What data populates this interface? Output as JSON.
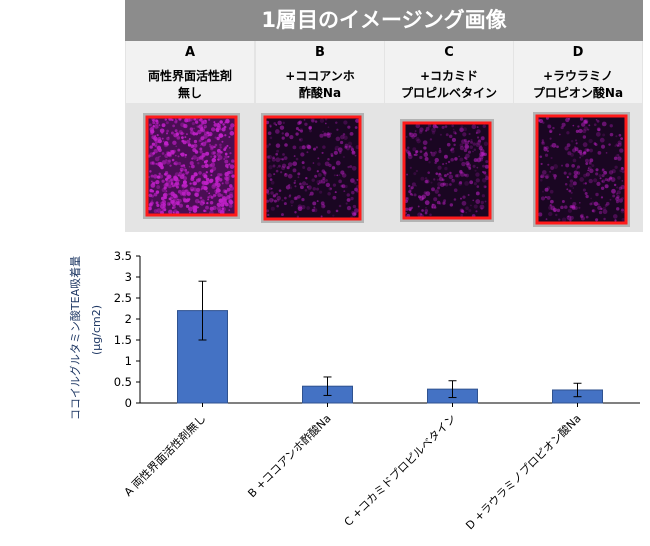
{
  "banner": {
    "title": "1層目のイメージング画像"
  },
  "columns": [
    {
      "letter": "A",
      "line1": "両性界面活性剤",
      "line2": "無し",
      "intensity": "high"
    },
    {
      "letter": "B",
      "line1": "+ココアンホ",
      "line2": "酢酸Na",
      "intensity": "low"
    },
    {
      "letter": "C",
      "line1": "+コカミド",
      "line2": "プロピルベタイン",
      "intensity": "low"
    },
    {
      "letter": "D",
      "line1": "+ラウラミノ",
      "line2": "プロピオン酸Na",
      "intensity": "low"
    }
  ],
  "colors": {
    "banner": "#8c8c8c",
    "bar": "#4472c4",
    "bar_border": "#2f528f",
    "frame": "#ff1a1a",
    "signal": "#c020c8",
    "axis_title": "#1f3864"
  },
  "chart_data": {
    "type": "bar",
    "categories": [
      "A 両性界面活性剤無し",
      "B +ココアンホ酢酸Na",
      "C +コカミドプロピルベタイン",
      "D +ラウラミノプロピオン酸Na"
    ],
    "values": [
      2.2,
      0.4,
      0.33,
      0.31
    ],
    "errors": [
      0.7,
      0.22,
      0.2,
      0.16
    ],
    "ylabel_line1": "ココイルグルタミン酸TEA吸着量",
    "ylabel_line2": "(μg/cm2)",
    "ylim": [
      0,
      3.5
    ],
    "yticks": [
      "0",
      "0.5",
      "1",
      "1.5",
      "2",
      "2.5",
      "3",
      "3.5"
    ],
    "grid": false,
    "legend": "none"
  }
}
